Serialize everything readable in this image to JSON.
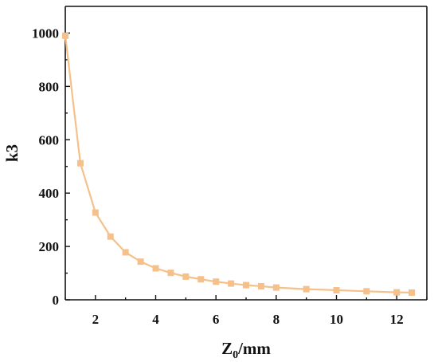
{
  "chart_data": {
    "type": "line",
    "title": "",
    "xlabel_main": "Z",
    "xlabel_sub": "0",
    "xlabel_unit": "/mm",
    "ylabel": "k3",
    "xlim": [
      1,
      13
    ],
    "ylim": [
      0,
      1100
    ],
    "x_ticks": [
      2,
      4,
      6,
      8,
      10,
      12
    ],
    "y_ticks": [
      0,
      200,
      400,
      600,
      800,
      1000
    ],
    "grid": false,
    "legend": "none",
    "series": [
      {
        "color": "#f5c08a",
        "marker": "square",
        "x": [
          1,
          1.5,
          2,
          2.5,
          3,
          3.5,
          4,
          4.5,
          5,
          5.5,
          6,
          6.5,
          7,
          7.5,
          8,
          9,
          10,
          11,
          12,
          12.5
        ],
        "y": [
          990,
          512,
          327,
          237,
          178,
          143,
          118,
          101,
          87,
          77,
          68,
          61,
          55,
          51,
          46,
          40,
          36,
          32,
          28,
          27
        ]
      }
    ]
  }
}
